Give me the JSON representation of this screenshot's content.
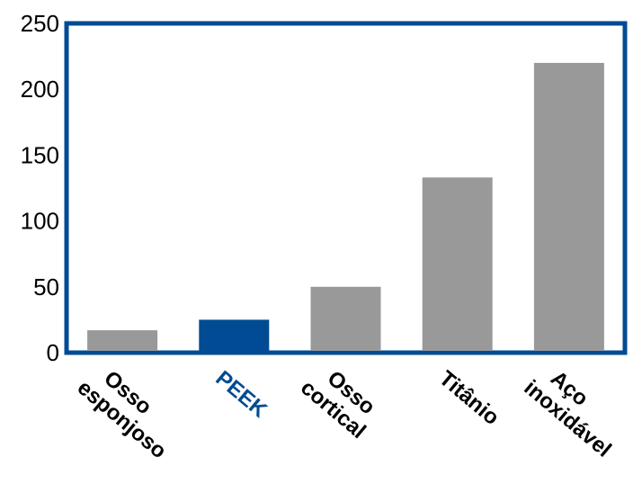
{
  "chart_data": {
    "type": "bar",
    "title": "",
    "xlabel": "",
    "ylabel": "",
    "ylim": [
      0,
      250
    ],
    "yticks": [
      0,
      50,
      100,
      150,
      200,
      250
    ],
    "grid": false,
    "legend": "none",
    "categories": [
      {
        "lines": [
          "Osso",
          "esponjoso"
        ],
        "value": 17,
        "color": "#999999",
        "label_color": "#000000"
      },
      {
        "lines": [
          "PEEK"
        ],
        "value": 25,
        "color": "#004b93",
        "label_color": "#004b93"
      },
      {
        "lines": [
          "Osso",
          "cortical"
        ],
        "value": 50,
        "color": "#999999",
        "label_color": "#000000"
      },
      {
        "lines": [
          "Titânio"
        ],
        "value": 133,
        "color": "#999999",
        "label_color": "#000000"
      },
      {
        "lines": [
          "Aço",
          "inoxidável"
        ],
        "value": 220,
        "color": "#999999",
        "label_color": "#000000"
      }
    ],
    "frame_color": "#004b93"
  }
}
